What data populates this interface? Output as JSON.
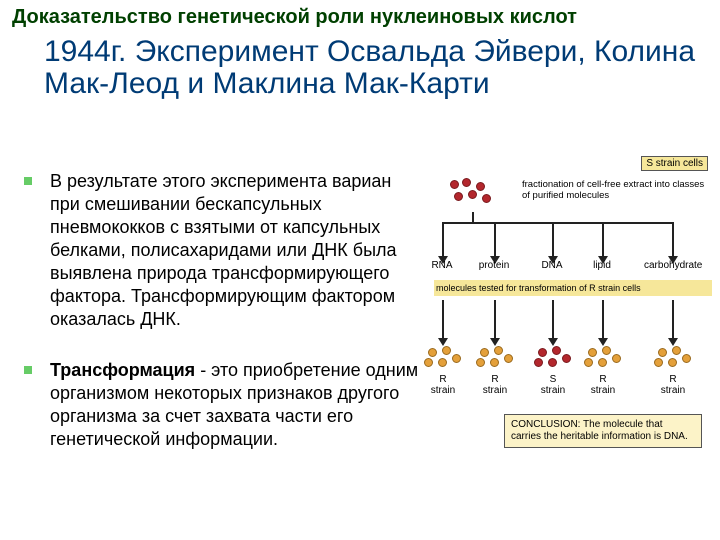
{
  "header": {
    "text": "Доказательство генетической роли нуклеиновых кислот",
    "color": "#004000",
    "fontsize": 20
  },
  "subtitle": {
    "text": "1944г. Эксперимент Освальда Эйвери, Колина Мак-Леод и Маклина Мак-Карти",
    "color": "#003b75",
    "fontsize": 30
  },
  "bullets": {
    "marker_color": "#66cc66",
    "items": [
      "В результате этого эксперимента вариан при смешивании бескапсульных пневмококков с взятыми от капсульных белками, полисахаридами или ДНК была выявлена природа трансформирующего фактора. Трансформирующим фактором оказалась ДНК.",
      "Трансформация - это приобретение одним организмом некоторых признаков другого организма за счет захвата части его генетической информации."
    ],
    "bold_lead": "Трансформация"
  },
  "diagram": {
    "s_label": "S strain cells",
    "s_label_bg": "#f6e79a",
    "frac_text": "fractionation of cell-free extract into classes of purified molecules",
    "fractions": [
      "RNA",
      "protein",
      "DNA",
      "lipid",
      "carbohydrate"
    ],
    "fraction_x": [
      8,
      60,
      118,
      168,
      238
    ],
    "mid_band": "molecules tested for transformation of R strain cells",
    "mid_band_bg": "#f6e79a",
    "strains": [
      "R",
      "R",
      "S",
      "R",
      "R"
    ],
    "strain_word": "strain",
    "r_color": "#e4a03a",
    "s_color": "#b3272d",
    "conclusion": "CONCLUSION: The molecule that carries the heritable information is DNA.",
    "conclusion_bg": "#fcf3c8"
  }
}
